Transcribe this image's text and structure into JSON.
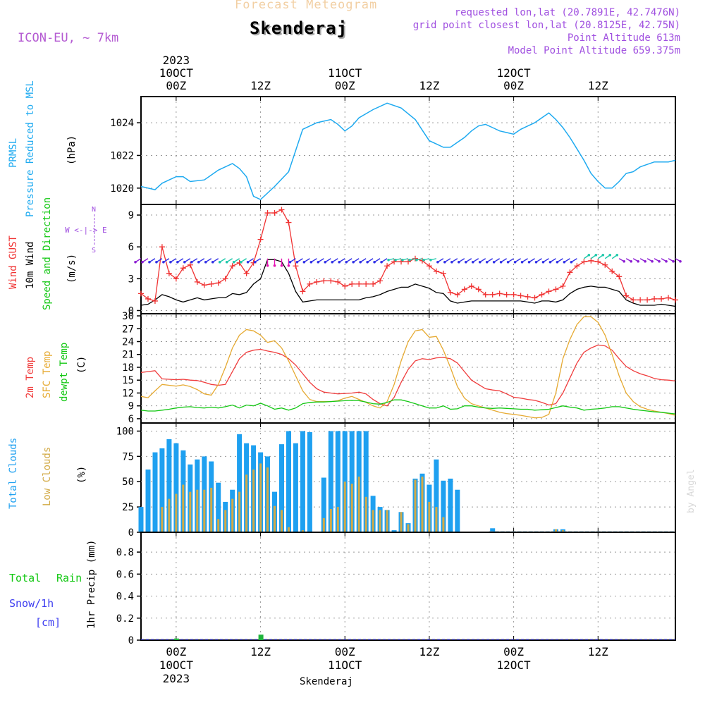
{
  "header": {
    "subtitle": "Forecast Meteogram",
    "location": "Skenderaj",
    "model": "ICON-EU, ~ 7km",
    "requested": "requested lon,lat (20.7891E, 42.7476N)",
    "grid": "grid point closest lon,lat (20.8125E, 42.75N)",
    "point_alt": "Point Altitude 613m",
    "model_alt": "Model Point Altitude 659.375m"
  },
  "footer": {
    "location": "Skenderaj",
    "watermark": "by Angel"
  },
  "colors": {
    "pressure": "#1eaaf0",
    "gust": "#f03232",
    "wind": "#000000",
    "temp": "#f03c3c",
    "sfc": "#e6aa32",
    "dewpt": "#14c814",
    "total_clouds": "#1ea0f0",
    "low_clouds": "#d2aa46",
    "rain": "#1eb43c",
    "snow": "#3c3cf0",
    "arrow_blue": "#3232e6",
    "arrow_cyan": "#1ec8aa",
    "arrow_purple": "#8c1ed2",
    "arrow_magenta": "#e614b4"
  },
  "time_axis": {
    "top_labels": [
      {
        "h": 0,
        "lines": [
          "2023",
          "10OCT",
          "00Z"
        ]
      },
      {
        "h": 12,
        "lines": [
          "12Z"
        ]
      },
      {
        "h": 24,
        "lines": [
          "11OCT",
          "00Z"
        ]
      },
      {
        "h": 36,
        "lines": [
          "12Z"
        ]
      },
      {
        "h": 48,
        "lines": [
          "12OCT",
          "00Z"
        ]
      },
      {
        "h": 60,
        "lines": [
          "12Z"
        ]
      }
    ],
    "bottom_labels": [
      {
        "h": 0,
        "lines": [
          "00Z",
          "10OCT",
          "2023"
        ]
      },
      {
        "h": 12,
        "lines": [
          "12Z"
        ]
      },
      {
        "h": 24,
        "lines": [
          "00Z",
          "11OCT"
        ]
      },
      {
        "h": 36,
        "lines": [
          "12Z"
        ]
      },
      {
        "h": 48,
        "lines": [
          "00Z",
          "12OCT"
        ]
      },
      {
        "h": 60,
        "lines": [
          "12Z"
        ]
      }
    ],
    "xlim_hours": [
      -5,
      71
    ]
  },
  "panel_labels": {
    "pressure": {
      "l1": "PRMSL",
      "l2": "Pressure Reduced to MSL",
      "unit": "(hPa)"
    },
    "wind": {
      "l1": "Wind GUST",
      "l2": "10m Wind",
      "l3": "Speed and Direction",
      "unit": "(m/s)",
      "compass_n": "N",
      "compass_we": "W <-|-> E",
      "compass_s": "S"
    },
    "temp": {
      "l1": "2m Temp",
      "l2": "SFC Temp",
      "l3": "dewpt Temp",
      "unit": "(C)"
    },
    "clouds": {
      "l1": "Total Clouds",
      "l2": "Low Clouds",
      "unit": "(%)"
    },
    "precip": {
      "l1": "Total",
      "l1b": "Rain",
      "l2": "Snow/1h",
      "l3": "[cm]",
      "unit": "1hr Precip (mm)"
    }
  },
  "chart_data": [
    {
      "type": "line",
      "title": "PRMSL Pressure Reduced to MSL",
      "ylabel": "(hPa)",
      "ylim": [
        1019,
        1025.6
      ],
      "yticks": [
        1020,
        1022,
        1024
      ],
      "x": [
        -5,
        -3,
        -2,
        -1,
        0,
        1,
        2,
        4,
        6,
        8,
        9,
        10,
        11,
        12,
        14,
        16,
        18,
        20,
        22,
        23,
        24,
        25,
        26,
        28,
        30,
        32,
        34,
        36,
        37,
        38,
        39,
        40,
        41,
        42,
        43,
        44,
        45,
        46,
        47,
        48,
        49,
        50,
        51,
        52,
        53,
        54,
        55,
        56,
        57,
        58,
        59,
        60,
        61,
        62,
        63,
        64,
        65,
        66,
        68,
        70,
        71
      ],
      "series": [
        {
          "name": "PRMSL",
          "values": [
            1020.1,
            1019.9,
            1020.3,
            1020.5,
            1020.7,
            1020.7,
            1020.4,
            1020.5,
            1021.1,
            1021.5,
            1021.2,
            1020.7,
            1019.5,
            1019.3,
            1020.1,
            1021.0,
            1023.6,
            1024.0,
            1024.2,
            1023.9,
            1023.5,
            1023.8,
            1024.3,
            1024.8,
            1025.2,
            1024.9,
            1024.2,
            1022.9,
            1022.7,
            1022.5,
            1022.5,
            1022.8,
            1023.1,
            1023.5,
            1023.8,
            1023.9,
            1023.7,
            1023.5,
            1023.4,
            1023.3,
            1023.6,
            1023.8,
            1024.0,
            1024.3,
            1024.6,
            1024.2,
            1023.7,
            1023.1,
            1022.4,
            1021.7,
            1020.9,
            1020.4,
            1020.0,
            1020.0,
            1020.4,
            1020.9,
            1021.0,
            1021.3,
            1021.6,
            1021.6,
            1021.7
          ]
        }
      ]
    },
    {
      "type": "line",
      "title": "Wind GUST / 10m Wind Speed and Direction",
      "ylabel": "(m/s)",
      "ylim": [
        -0.3,
        10
      ],
      "yticks": [
        0,
        3,
        6,
        9
      ],
      "x": [
        -5,
        -4,
        -3,
        -2,
        -1,
        0,
        1,
        2,
        3,
        4,
        5,
        6,
        7,
        8,
        9,
        10,
        11,
        12,
        13,
        14,
        15,
        16,
        17,
        18,
        19,
        20,
        21,
        22,
        23,
        24,
        25,
        26,
        27,
        28,
        29,
        30,
        31,
        32,
        33,
        34,
        35,
        36,
        37,
        38,
        39,
        40,
        41,
        42,
        43,
        44,
        45,
        46,
        47,
        48,
        49,
        50,
        51,
        52,
        53,
        54,
        55,
        56,
        57,
        58,
        59,
        60,
        61,
        62,
        63,
        64,
        65,
        66,
        67,
        68,
        69,
        70,
        71
      ],
      "series": [
        {
          "name": "Wind GUST",
          "values": [
            1.6,
            1.1,
            0.9,
            6.0,
            3.5,
            3.0,
            4.0,
            4.3,
            2.7,
            2.4,
            2.5,
            2.6,
            3.0,
            4.2,
            4.5,
            3.5,
            4.5,
            6.7,
            9.2,
            9.2,
            9.5,
            8.3,
            4.2,
            1.8,
            2.5,
            2.7,
            2.8,
            2.8,
            2.7,
            2.3,
            2.5,
            2.5,
            2.5,
            2.5,
            2.8,
            4.2,
            4.6,
            4.6,
            4.6,
            4.9,
            4.7,
            4.2,
            3.7,
            3.5,
            1.7,
            1.5,
            2.0,
            2.3,
            2.0,
            1.5,
            1.5,
            1.6,
            1.5,
            1.5,
            1.4,
            1.3,
            1.2,
            1.5,
            1.8,
            2.0,
            2.3,
            3.6,
            4.2,
            4.6,
            4.7,
            4.6,
            4.3,
            3.7,
            3.2,
            1.4,
            1.0,
            1.0,
            1.0,
            1.1,
            1.1,
            1.2,
            1.0
          ]
        },
        {
          "name": "10m Wind",
          "values": [
            0.5,
            0.6,
            1.0,
            1.5,
            1.3,
            1.0,
            0.8,
            1.0,
            1.2,
            1.0,
            1.1,
            1.2,
            1.2,
            1.6,
            1.5,
            1.7,
            2.5,
            3.0,
            4.8,
            4.8,
            4.6,
            3.5,
            1.8,
            0.8,
            0.9,
            1.0,
            1.0,
            1.0,
            1.0,
            1.0,
            1.0,
            1.0,
            1.2,
            1.3,
            1.5,
            1.8,
            2.0,
            2.2,
            2.2,
            2.5,
            2.3,
            2.1,
            1.7,
            1.6,
            0.9,
            0.7,
            0.8,
            0.9,
            0.9,
            0.9,
            0.9,
            0.9,
            0.9,
            0.9,
            0.9,
            0.8,
            0.7,
            0.9,
            0.9,
            0.8,
            1.0,
            1.6,
            2.0,
            2.2,
            2.3,
            2.2,
            2.2,
            2.0,
            1.8,
            1.0,
            0.7,
            0.5,
            0.5,
            0.5,
            0.6,
            0.5,
            0.4
          ]
        }
      ]
    },
    {
      "type": "line",
      "title": "2m Temp / SFC Temp / dewpt Temp",
      "ylabel": "(C)",
      "ylim": [
        5,
        30.5
      ],
      "yticks": [
        6,
        9,
        12,
        15,
        18,
        21,
        24,
        27,
        30
      ],
      "x": [
        -5,
        -4,
        -3,
        -2,
        -1,
        0,
        1,
        2,
        3,
        4,
        5,
        6,
        7,
        8,
        9,
        10,
        11,
        12,
        13,
        14,
        15,
        16,
        17,
        18,
        19,
        20,
        21,
        22,
        23,
        24,
        25,
        26,
        27,
        28,
        29,
        30,
        31,
        32,
        33,
        34,
        35,
        36,
        37,
        38,
        39,
        40,
        41,
        42,
        43,
        44,
        45,
        46,
        47,
        48,
        49,
        50,
        51,
        52,
        53,
        54,
        55,
        56,
        57,
        58,
        59,
        60,
        61,
        62,
        63,
        64,
        65,
        66,
        67,
        68,
        69,
        70,
        71
      ],
      "series": [
        {
          "name": "2m Temp",
          "values": [
            16.8,
            17.0,
            17.2,
            15.3,
            15.2,
            15.1,
            15.2,
            15.0,
            14.9,
            14.5,
            14.0,
            13.8,
            14.0,
            17.0,
            20.0,
            21.5,
            22.0,
            22.2,
            21.8,
            21.5,
            21.0,
            20.0,
            18.5,
            16.5,
            14.5,
            13.0,
            12.2,
            12.0,
            11.8,
            11.9,
            12.0,
            12.2,
            11.8,
            10.5,
            9.5,
            9.0,
            11.0,
            14.5,
            17.5,
            19.5,
            20.0,
            19.8,
            20.2,
            20.3,
            20.0,
            19.0,
            17.0,
            15.0,
            14.0,
            13.0,
            12.7,
            12.5,
            11.8,
            11.0,
            10.8,
            10.5,
            10.3,
            9.8,
            9.2,
            9.5,
            12.0,
            15.5,
            19.0,
            21.5,
            22.5,
            23.2,
            23.0,
            22.0,
            20.0,
            18.2,
            17.2,
            16.5,
            16.0,
            15.4,
            15.1,
            15.0,
            14.8
          ]
        },
        {
          "name": "SFC Temp",
          "values": [
            11.2,
            10.9,
            12.5,
            14.0,
            13.8,
            13.6,
            13.9,
            13.5,
            12.8,
            11.8,
            11.5,
            14.0,
            18.0,
            22.5,
            25.5,
            26.8,
            26.5,
            25.5,
            23.8,
            24.2,
            22.5,
            19.5,
            16.0,
            12.5,
            10.5,
            10.0,
            10.0,
            10.0,
            10.2,
            10.8,
            11.2,
            10.5,
            9.8,
            9.0,
            8.5,
            10.0,
            14.0,
            19.5,
            24.0,
            26.5,
            26.8,
            25.0,
            25.2,
            22.0,
            18.0,
            13.5,
            10.8,
            9.5,
            9.0,
            8.5,
            8.0,
            7.5,
            7.2,
            7.0,
            6.8,
            6.5,
            6.2,
            6.3,
            7.0,
            12.0,
            20.0,
            24.5,
            28.0,
            29.8,
            29.8,
            28.5,
            25.5,
            21.0,
            16.0,
            12.0,
            10.0,
            8.8,
            8.2,
            7.8,
            7.5,
            7.2,
            6.8
          ]
        },
        {
          "name": "dewpt Temp",
          "values": [
            8.0,
            7.8,
            7.8,
            8.0,
            8.2,
            8.5,
            8.7,
            8.8,
            8.6,
            8.5,
            8.7,
            8.5,
            8.8,
            9.2,
            8.5,
            9.2,
            9.0,
            9.6,
            9.0,
            8.2,
            8.5,
            8.0,
            8.5,
            9.5,
            9.8,
            9.9,
            9.9,
            10.0,
            10.1,
            10.2,
            10.3,
            10.2,
            9.9,
            9.5,
            9.4,
            9.8,
            10.4,
            10.4,
            10.0,
            9.5,
            9.0,
            8.5,
            8.5,
            9.0,
            8.2,
            8.3,
            9.0,
            9.0,
            8.7,
            8.5,
            8.4,
            8.5,
            8.4,
            8.3,
            8.2,
            8.2,
            8.0,
            8.1,
            8.2,
            8.6,
            9.0,
            8.7,
            8.5,
            8.0,
            8.2,
            8.3,
            8.5,
            8.8,
            8.8,
            8.5,
            8.2,
            8.0,
            7.8,
            7.6,
            7.5,
            7.3,
            7.1
          ]
        }
      ]
    },
    {
      "type": "bar",
      "title": "Total Clouds / Low Clouds",
      "ylabel": "(%)",
      "ylim": [
        0,
        108
      ],
      "yticks": [
        0,
        25,
        50,
        75,
        100
      ],
      "x": [
        -5,
        -4,
        -3,
        -2,
        -1,
        0,
        1,
        2,
        3,
        4,
        5,
        6,
        7,
        8,
        9,
        10,
        11,
        12,
        13,
        14,
        15,
        16,
        17,
        18,
        19,
        20,
        21,
        22,
        23,
        24,
        25,
        26,
        27,
        28,
        29,
        30,
        31,
        32,
        33,
        34,
        35,
        36,
        37,
        38,
        39,
        40,
        41,
        42,
        43,
        44,
        45,
        46,
        47,
        48,
        49,
        50,
        51,
        52,
        53,
        54,
        55,
        56,
        57,
        58,
        59,
        60,
        61,
        62,
        63,
        64,
        65,
        66,
        67,
        68,
        69,
        70,
        71
      ],
      "series": [
        {
          "name": "Total Clouds",
          "values": [
            25,
            62,
            79,
            83,
            92,
            88,
            81,
            67,
            72,
            75,
            70,
            49,
            30,
            42,
            97,
            88,
            86,
            79,
            75,
            40,
            87,
            100,
            88,
            100,
            99,
            0,
            54,
            100,
            100,
            100,
            100,
            100,
            100,
            36,
            25,
            22,
            2,
            20,
            9,
            53,
            58,
            47,
            72,
            51,
            53,
            42,
            0,
            0,
            0,
            0,
            4,
            0,
            0,
            0,
            0,
            0,
            0,
            0,
            0,
            3,
            3,
            0,
            0,
            0,
            0,
            0,
            0,
            0,
            0,
            0,
            0,
            0,
            0,
            0,
            0,
            0,
            0
          ]
        },
        {
          "name": "Low Clouds",
          "values": [
            0,
            0,
            0,
            25,
            33,
            38,
            47,
            40,
            42,
            42,
            44,
            13,
            22,
            33,
            40,
            57,
            62,
            68,
            64,
            26,
            22,
            5,
            0,
            2,
            0,
            0,
            14,
            23,
            25,
            50,
            48,
            55,
            35,
            22,
            22,
            22,
            0,
            20,
            8,
            52,
            55,
            30,
            25,
            15,
            0,
            0,
            0,
            0,
            0,
            0,
            0,
            0,
            0,
            0,
            0,
            0,
            0,
            0,
            0,
            3,
            2,
            0,
            0,
            0,
            0,
            0,
            0,
            0,
            0,
            0,
            0,
            0,
            0,
            0,
            0,
            0,
            0
          ]
        }
      ]
    },
    {
      "type": "bar",
      "title": "1hr Precip",
      "ylabel": "1hr Precip (mm)",
      "ylim": [
        0,
        0.98
      ],
      "yticks": [
        0,
        0.2,
        0.4,
        0.6,
        0.8
      ],
      "x": [
        0,
        12
      ],
      "series": [
        {
          "name": "Total Rain",
          "values": [
            0.015,
            0.05
          ]
        }
      ]
    }
  ]
}
